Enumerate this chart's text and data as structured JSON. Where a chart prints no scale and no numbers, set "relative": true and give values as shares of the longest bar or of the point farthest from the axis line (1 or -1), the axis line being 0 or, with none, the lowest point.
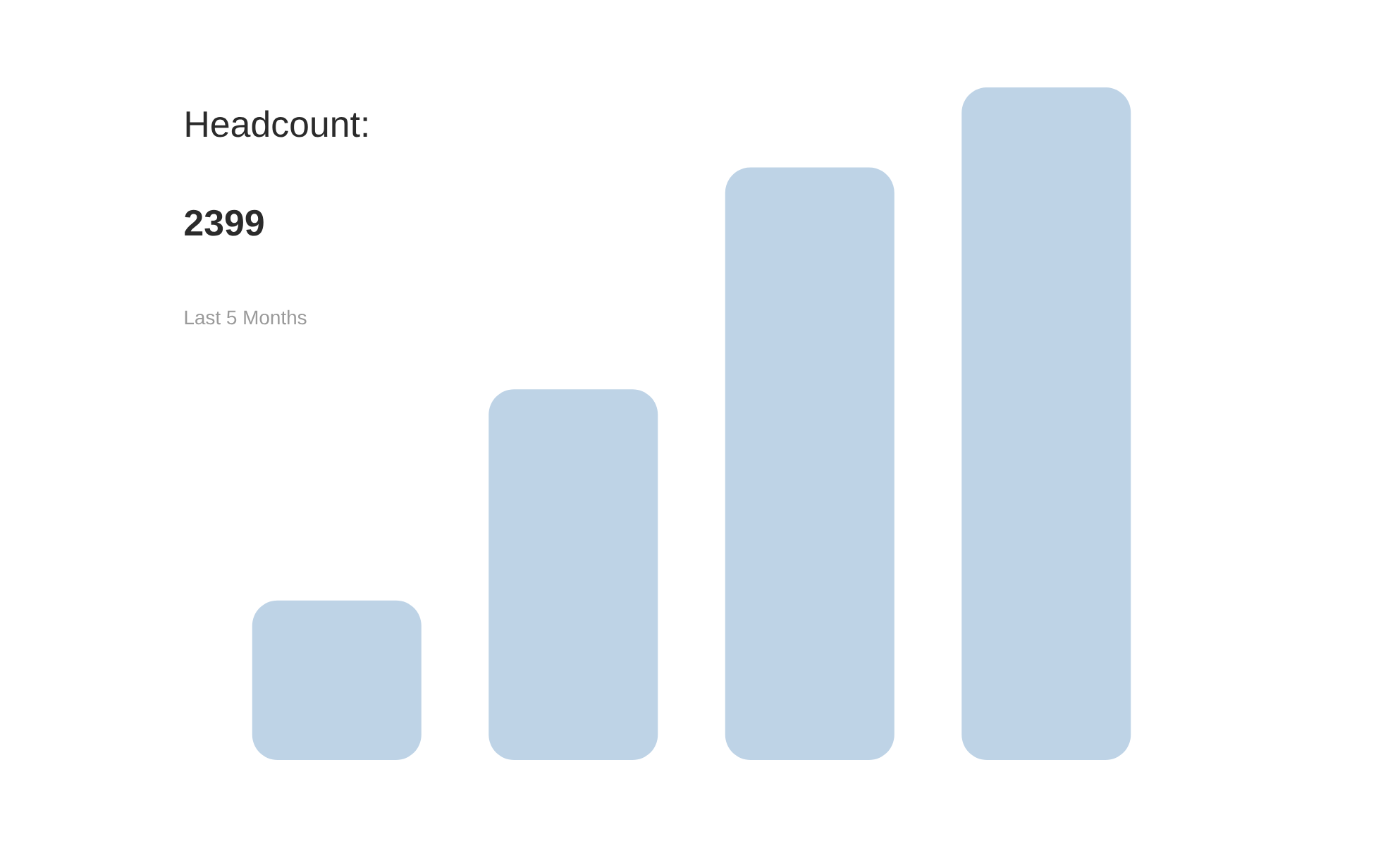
{
  "chart_data": {
    "type": "bar",
    "relative": true,
    "title": "Headcount:",
    "subtitle": "2399",
    "annotations": [
      "Last 5 Months"
    ],
    "categories": [
      null,
      null,
      null,
      null
    ],
    "values": [
      0.237,
      0.551,
      0.881,
      1
    ],
    "color": "#bed3e6"
  }
}
